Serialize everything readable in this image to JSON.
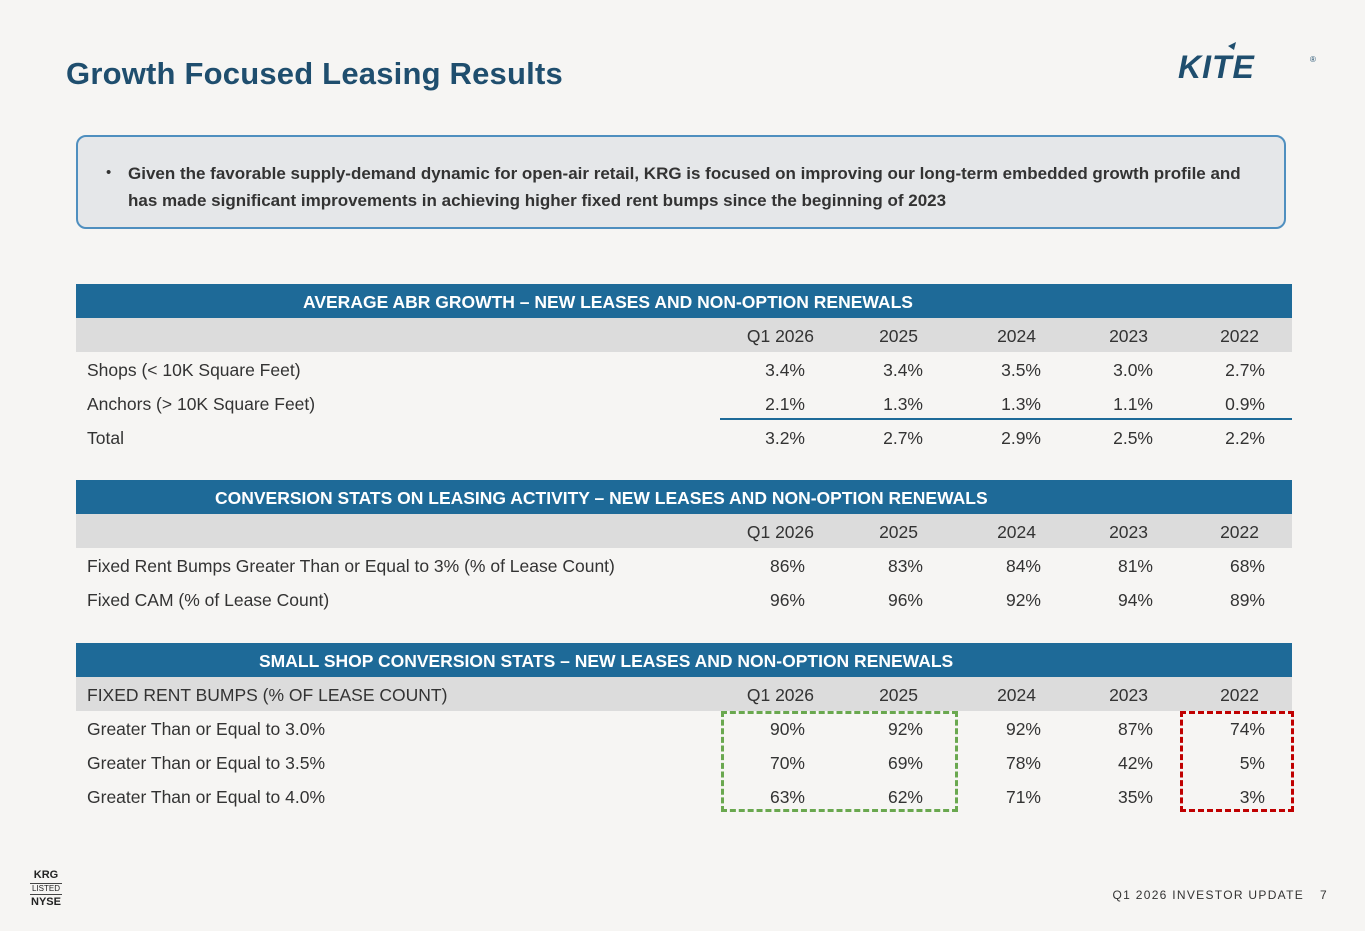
{
  "title": "Growth Focused Leasing Results",
  "logo": {
    "text": "KITE",
    "registered": "®"
  },
  "callout": {
    "bullet": "•",
    "text": "Given the favorable supply-demand dynamic for open-air retail, KRG is focused on improving our long-term embedded growth profile and has made significant improvements in achieving higher fixed rent bumps since the beginning of 2023"
  },
  "tables": {
    "abr": {
      "title": "AVERAGE ABR GROWTH – NEW LEASES AND NON-OPTION RENEWALS",
      "header_label": "",
      "columns": [
        "Q1 2026",
        "2025",
        "2024",
        "2023",
        "2022"
      ],
      "rows": [
        {
          "label": "Shops (< 10K Square Feet)",
          "values": [
            "3.4%",
            "3.4%",
            "3.5%",
            "3.0%",
            "2.7%"
          ]
        },
        {
          "label": "Anchors (> 10K Square Feet)",
          "values": [
            "2.1%",
            "1.3%",
            "1.3%",
            "1.1%",
            "0.9%"
          ]
        },
        {
          "label": "Total",
          "values": [
            "3.2%",
            "2.7%",
            "2.9%",
            "2.5%",
            "2.2%"
          ]
        }
      ]
    },
    "conversion": {
      "title": "CONVERSION STATS ON LEASING ACTIVITY – NEW LEASES AND NON-OPTION RENEWALS",
      "header_label": "",
      "columns": [
        "Q1 2026",
        "2025",
        "2024",
        "2023",
        "2022"
      ],
      "rows": [
        {
          "label": "Fixed Rent Bumps Greater Than or Equal to 3% (% of Lease Count)",
          "values": [
            "86%",
            "83%",
            "84%",
            "81%",
            "68%"
          ]
        },
        {
          "label": "Fixed CAM (% of Lease Count)",
          "values": [
            "96%",
            "96%",
            "92%",
            "94%",
            "89%"
          ]
        }
      ]
    },
    "small_shop": {
      "title": "SMALL SHOP CONVERSION STATS – NEW LEASES AND NON-OPTION RENEWALS",
      "header_label": "FIXED RENT BUMPS (% OF LEASE COUNT)",
      "columns": [
        "Q1 2026",
        "2025",
        "2024",
        "2023",
        "2022"
      ],
      "rows": [
        {
          "label": "Greater Than or Equal to 3.0%",
          "values": [
            "90%",
            "92%",
            "92%",
            "87%",
            "74%"
          ]
        },
        {
          "label": "Greater Than or Equal to 3.5%",
          "values": [
            "70%",
            "69%",
            "78%",
            "42%",
            "5%"
          ]
        },
        {
          "label": "Greater Than or Equal to 4.0%",
          "values": [
            "63%",
            "62%",
            "71%",
            "35%",
            "3%"
          ]
        }
      ]
    }
  },
  "listing": {
    "line1": "KRG",
    "line2": "LISTED",
    "line3": "NYSE"
  },
  "footer": {
    "label": "Q1 2026 INVESTOR UPDATE",
    "page": "7"
  },
  "colors": {
    "title": "#1f4e6e",
    "header_bg": "#1e6a98",
    "highlight_green": "#6aa84f",
    "highlight_red": "#c00000"
  }
}
